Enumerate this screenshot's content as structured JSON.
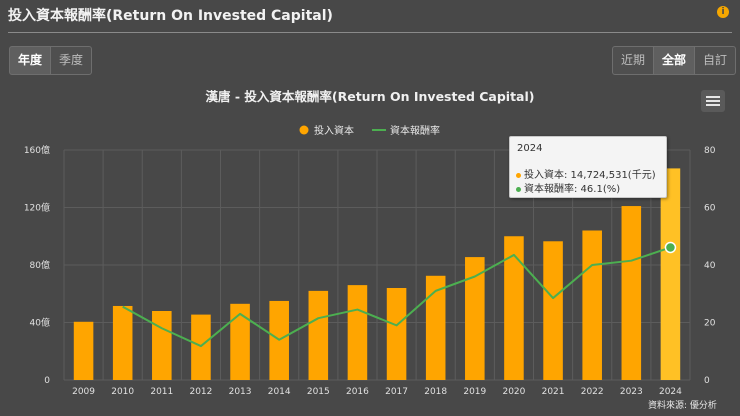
{
  "header": {
    "title": "投入資本報酬率(Return On Invested Capital)",
    "info_icon": "i"
  },
  "period_buttons": [
    "年度",
    "季度"
  ],
  "range_buttons": [
    "近期",
    "全部",
    "自訂"
  ],
  "colors": {
    "bars": "#ffa500",
    "highlight_bar": "#ffc125",
    "line": "#4caf50",
    "accent": "#f5a700"
  },
  "chart_data": {
    "type": "bar+line",
    "title": "漢唐 - 投入資本報酬率(Return On Invested Capital)",
    "categories": [
      "2009",
      "2010",
      "2011",
      "2012",
      "2013",
      "2014",
      "2015",
      "2016",
      "2017",
      "2018",
      "2019",
      "2020",
      "2021",
      "2022",
      "2023",
      "2024"
    ],
    "series": [
      {
        "name": "投入資本",
        "type": "bar",
        "axis": "left",
        "values": [
          40.5,
          51.5,
          48,
          45.5,
          53,
          55,
          62,
          66,
          64,
          72.5,
          85.5,
          100,
          96.5,
          104,
          121,
          147.2
        ]
      },
      {
        "name": "資本報酬率",
        "type": "line",
        "axis": "right",
        "values": [
          null,
          25.5,
          18,
          11.8,
          23,
          14,
          21.5,
          24.5,
          19,
          31,
          36,
          43.5,
          28.5,
          40,
          41.5,
          46.1
        ]
      }
    ],
    "left_axis": {
      "min": 0,
      "max": 160,
      "ticks": [
        "0",
        "40億",
        "80億",
        "120億",
        "160億"
      ]
    },
    "right_axis": {
      "min": 0,
      "max": 80,
      "ticks": [
        "0",
        "20",
        "40",
        "60",
        "80"
      ]
    },
    "legend_position": "top-center",
    "tooltip": {
      "title": "2024",
      "row1": "投入資本: 14,724,531(千元)",
      "row2": "資本報酬率: 46.1(%)"
    }
  },
  "source": "資料來源: 優分析"
}
